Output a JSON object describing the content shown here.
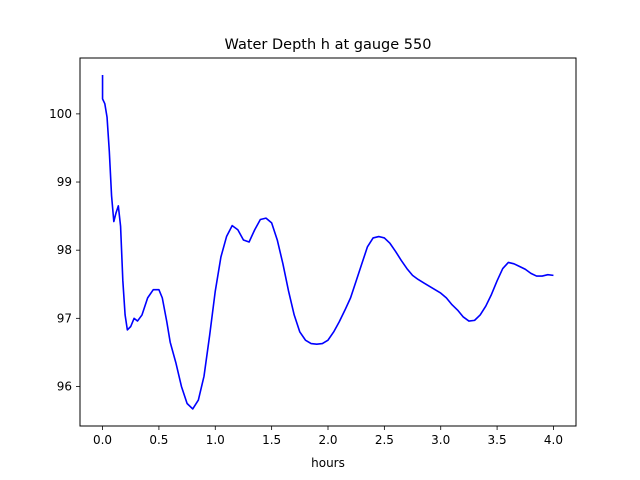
{
  "chart_data": {
    "type": "line",
    "title": "Water Depth h at gauge 550",
    "xlabel": "hours",
    "ylabel": "",
    "xlim": [
      -0.2,
      4.2
    ],
    "ylim": [
      95.42,
      100.82
    ],
    "xticks": [
      0.0,
      0.5,
      1.0,
      1.5,
      2.0,
      2.5,
      3.0,
      3.5,
      4.0
    ],
    "xtick_labels": [
      "0.0",
      "0.5",
      "1.0",
      "1.5",
      "2.0",
      "2.5",
      "3.0",
      "3.5",
      "4.0"
    ],
    "yticks": [
      96,
      97,
      98,
      99,
      100
    ],
    "ytick_labels": [
      "96",
      "97",
      "98",
      "99",
      "100"
    ],
    "grid": false,
    "series": [
      {
        "color": "#0000ff",
        "x": [
          0.0,
          0.0,
          0.02,
          0.04,
          0.06,
          0.08,
          0.1,
          0.12,
          0.14,
          0.16,
          0.18,
          0.2,
          0.22,
          0.25,
          0.28,
          0.31,
          0.35,
          0.4,
          0.45,
          0.5,
          0.53,
          0.57,
          0.6,
          0.65,
          0.7,
          0.75,
          0.8,
          0.85,
          0.9,
          0.95,
          1.0,
          1.05,
          1.1,
          1.15,
          1.2,
          1.25,
          1.3,
          1.35,
          1.4,
          1.45,
          1.5,
          1.55,
          1.6,
          1.65,
          1.7,
          1.75,
          1.8,
          1.85,
          1.9,
          1.95,
          2.0,
          2.05,
          2.1,
          2.15,
          2.2,
          2.25,
          2.3,
          2.35,
          2.4,
          2.45,
          2.5,
          2.55,
          2.6,
          2.65,
          2.7,
          2.75,
          2.8,
          2.85,
          2.9,
          2.95,
          3.0,
          3.05,
          3.1,
          3.15,
          3.2,
          3.25,
          3.3,
          3.35,
          3.4,
          3.45,
          3.5,
          3.55,
          3.6,
          3.65,
          3.7,
          3.75,
          3.8,
          3.85,
          3.9,
          3.95,
          4.0
        ],
        "y": [
          100.57,
          100.22,
          100.15,
          99.95,
          99.45,
          98.8,
          98.42,
          98.55,
          98.65,
          98.35,
          97.55,
          97.05,
          96.83,
          96.88,
          97.0,
          96.96,
          97.05,
          97.3,
          97.42,
          97.42,
          97.3,
          96.95,
          96.65,
          96.35,
          96.0,
          95.75,
          95.67,
          95.8,
          96.15,
          96.75,
          97.4,
          97.9,
          98.2,
          98.36,
          98.3,
          98.15,
          98.12,
          98.3,
          98.45,
          98.47,
          98.4,
          98.15,
          97.8,
          97.4,
          97.05,
          96.8,
          96.68,
          96.63,
          96.62,
          96.63,
          96.68,
          96.8,
          96.95,
          97.12,
          97.3,
          97.55,
          97.8,
          98.05,
          98.18,
          98.2,
          98.18,
          98.1,
          97.98,
          97.85,
          97.73,
          97.63,
          97.57,
          97.52,
          97.47,
          97.42,
          97.37,
          97.3,
          97.2,
          97.12,
          97.02,
          96.96,
          96.97,
          97.05,
          97.18,
          97.35,
          97.55,
          97.73,
          97.82,
          97.8,
          97.76,
          97.72,
          97.66,
          97.62,
          97.62,
          97.64,
          97.63
        ]
      }
    ]
  }
}
